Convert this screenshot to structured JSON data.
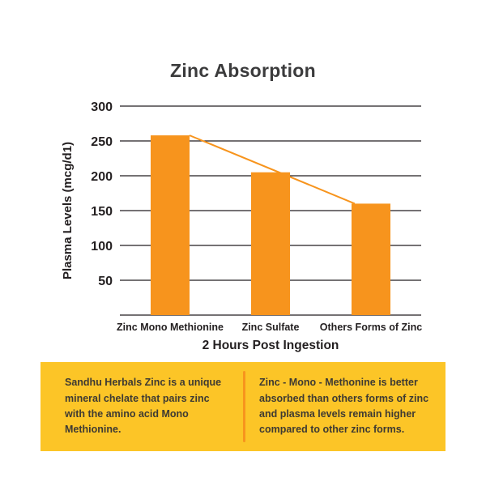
{
  "page": {
    "background": "#ffffff"
  },
  "chart_data": {
    "type": "bar",
    "title": "Zinc Absorption",
    "xlabel": "2 Hours Post Ingestion",
    "ylabel": "Plasma Levels (mcg/d1)",
    "categories": [
      "Zinc Mono Methionine",
      "Zinc Sulfate",
      "Others Forms of Zinc"
    ],
    "values": [
      258,
      205,
      160
    ],
    "ylim": [
      0,
      300
    ],
    "yticks": [
      300,
      250,
      200,
      150,
      100,
      50
    ],
    "grid": true,
    "legend": "none",
    "bar_color": "#f7941d",
    "trend_line": {
      "show": true,
      "color": "#f7941d",
      "width": 2
    },
    "axis_color": "#231f20",
    "title_color": "#3b3b3c"
  },
  "footer": {
    "left_text": "Sandhu Herbals Zinc is a unique mineral chelate that pairs zinc with the amino acid Mono Methionine.",
    "right_text": "Zinc - Mono - Methonine is better absorbed than others forms of zinc and plasma levels remain higher compared to other zinc forms.",
    "background": "#fcc527",
    "divider_color": "#f7941d",
    "text_color": "#3e3a33"
  }
}
